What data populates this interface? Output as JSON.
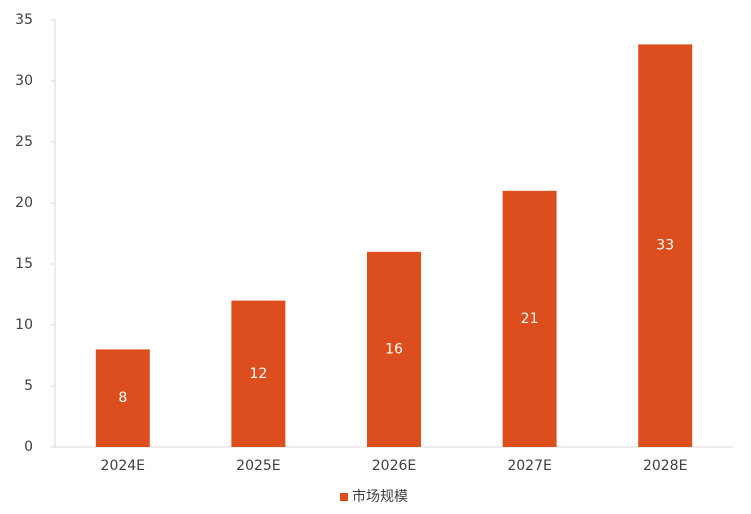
{
  "chart_data": {
    "type": "bar",
    "categories": [
      "2024E",
      "2025E",
      "2026E",
      "2027E",
      "2028E"
    ],
    "series": [
      {
        "name": "市场规模",
        "color": "#dc4e1e",
        "values": [
          8,
          12,
          16,
          21,
          33
        ]
      }
    ],
    "ylim": [
      0,
      35
    ],
    "yticks": [
      0,
      5,
      10,
      15,
      20,
      25,
      30,
      35
    ],
    "grid": false,
    "legend": "bottom"
  }
}
